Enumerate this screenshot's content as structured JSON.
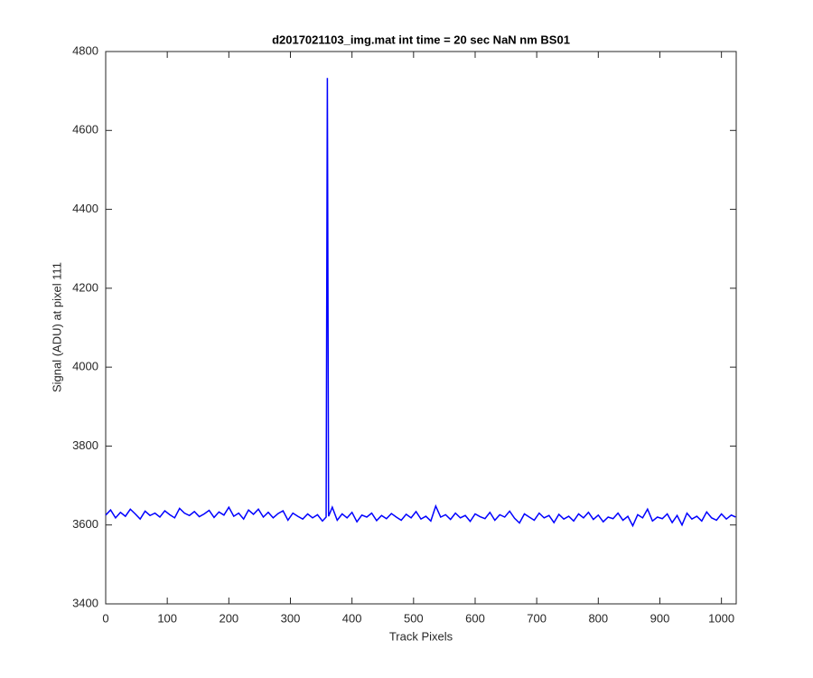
{
  "chart_data": {
    "type": "line",
    "title": "d2017021103_img.mat int time = 20 sec  NaN nm BS01",
    "x_label": "Track Pixels",
    "y_label": "Signal (ADU) at pixel 111",
    "xlim": [
      0,
      1024
    ],
    "ylim": [
      3400,
      4800
    ],
    "xticks": [
      0,
      100,
      200,
      300,
      400,
      500,
      600,
      700,
      800,
      900,
      1000
    ],
    "yticks": [
      3400,
      3600,
      3800,
      4000,
      4200,
      4400,
      4600,
      4800
    ],
    "grid": false,
    "x": [
      0,
      8,
      16,
      24,
      32,
      40,
      48,
      56,
      64,
      72,
      80,
      88,
      96,
      104,
      112,
      120,
      128,
      136,
      144,
      152,
      160,
      168,
      176,
      184,
      192,
      200,
      208,
      216,
      224,
      232,
      240,
      248,
      256,
      264,
      272,
      280,
      288,
      296,
      304,
      312,
      320,
      328,
      336,
      344,
      352,
      358,
      360,
      362,
      368,
      376,
      384,
      392,
      400,
      408,
      416,
      424,
      432,
      440,
      448,
      456,
      464,
      472,
      480,
      488,
      496,
      504,
      512,
      520,
      528,
      536,
      544,
      552,
      560,
      568,
      576,
      584,
      592,
      600,
      608,
      616,
      624,
      632,
      640,
      648,
      656,
      664,
      672,
      680,
      688,
      696,
      704,
      712,
      720,
      728,
      736,
      744,
      752,
      760,
      768,
      776,
      784,
      792,
      800,
      808,
      816,
      824,
      832,
      840,
      848,
      856,
      864,
      872,
      880,
      888,
      896,
      904,
      912,
      920,
      928,
      936,
      944,
      952,
      960,
      968,
      976,
      984,
      992,
      1000,
      1008,
      1016,
      1023
    ],
    "series": [
      {
        "color": "#0000ff",
        "values": [
          3625,
          3638,
          3618,
          3632,
          3622,
          3640,
          3628,
          3615,
          3635,
          3624,
          3630,
          3620,
          3636,
          3626,
          3618,
          3642,
          3630,
          3624,
          3634,
          3621,
          3628,
          3637,
          3619,
          3633,
          3625,
          3645,
          3622,
          3630,
          3615,
          3638,
          3627,
          3640,
          3620,
          3632,
          3618,
          3629,
          3636,
          3612,
          3630,
          3622,
          3615,
          3628,
          3618,
          3626,
          3610,
          3620,
          4733,
          3622,
          3645,
          3612,
          3628,
          3618,
          3632,
          3608,
          3625,
          3620,
          3630,
          3611,
          3624,
          3616,
          3629,
          3620,
          3612,
          3627,
          3618,
          3634,
          3615,
          3622,
          3610,
          3648,
          3620,
          3626,
          3614,
          3630,
          3618,
          3624,
          3609,
          3628,
          3621,
          3616,
          3632,
          3612,
          3626,
          3620,
          3635,
          3617,
          3605,
          3628,
          3620,
          3612,
          3630,
          3618,
          3624,
          3606,
          3627,
          3615,
          3622,
          3610,
          3628,
          3618,
          3632,
          3614,
          3625,
          3608,
          3620,
          3616,
          3630,
          3612,
          3622,
          3598,
          3626,
          3618,
          3640,
          3610,
          3620,
          3616,
          3628,
          3606,
          3624,
          3600,
          3630,
          3615,
          3622,
          3610,
          3633,
          3618,
          3612,
          3628,
          3615,
          3625,
          3620
        ]
      }
    ]
  }
}
